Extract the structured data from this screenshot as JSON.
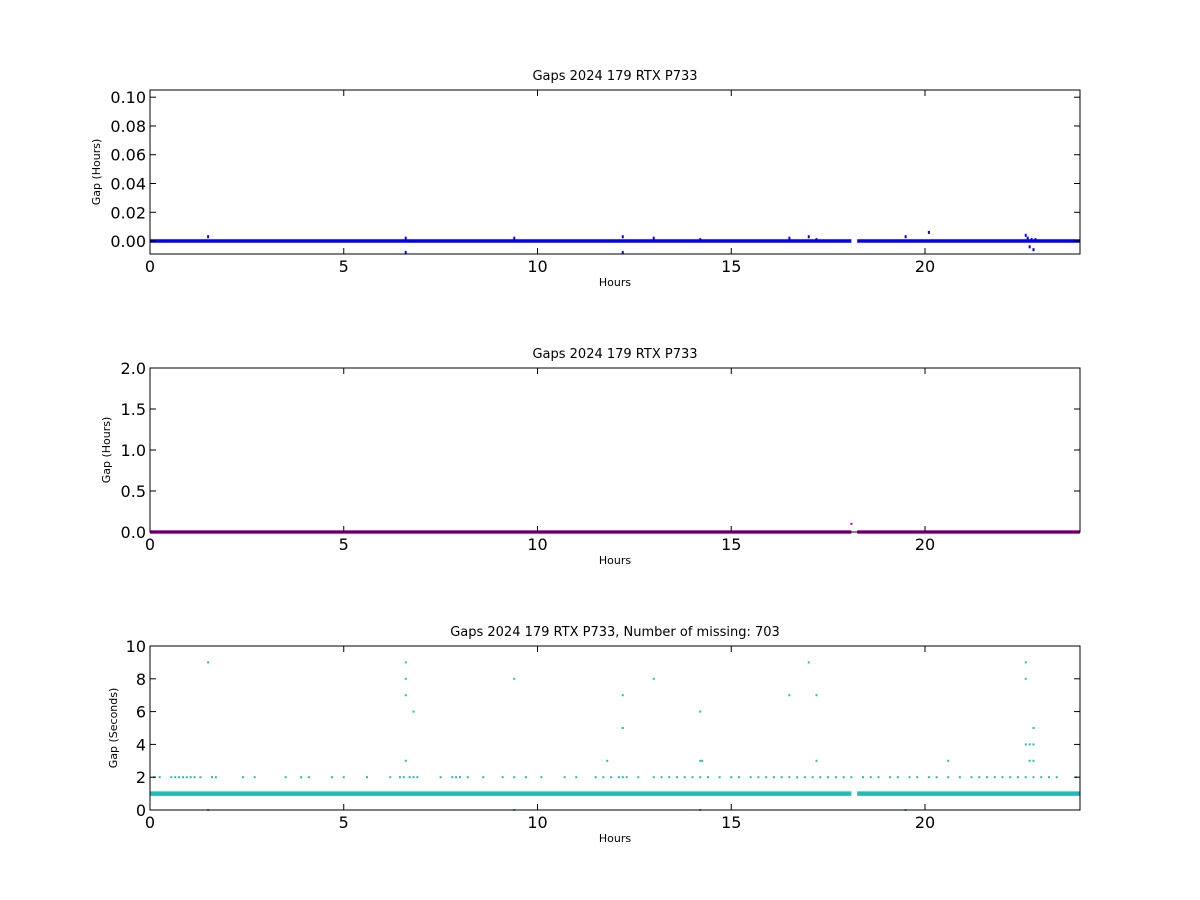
{
  "chart_data": [
    {
      "type": "scatter",
      "title": "Gaps 2024 179 RTX  P733",
      "xlabel": "Hours",
      "ylabel": "Gap (Hours)",
      "xlim": [
        0,
        24
      ],
      "ylim": [
        -0.009,
        0.105
      ],
      "xticks": [
        "0",
        "5",
        "10",
        "15",
        "20"
      ],
      "yticks": [
        "0.00",
        "0.02",
        "0.04",
        "0.06",
        "0.08",
        "0.10"
      ],
      "grid": false,
      "color": "#0000ee",
      "baseline": {
        "value": 0.0,
        "x_ranges": [
          [
            0,
            18.1
          ],
          [
            18.25,
            24
          ]
        ]
      },
      "points": [
        [
          1.5,
          0.003
        ],
        [
          6.6,
          0.002
        ],
        [
          6.6,
          -0.008
        ],
        [
          6.8,
          0.0
        ],
        [
          9.4,
          0.002
        ],
        [
          12.2,
          0.003
        ],
        [
          12.2,
          -0.008
        ],
        [
          13.0,
          0.002
        ],
        [
          14.2,
          0.001
        ],
        [
          16.5,
          0.002
        ],
        [
          17.0,
          0.003
        ],
        [
          17.2,
          0.001
        ],
        [
          19.5,
          0.003
        ],
        [
          20.1,
          0.006
        ],
        [
          22.6,
          0.004
        ],
        [
          22.65,
          0.002
        ],
        [
          22.7,
          -0.004
        ],
        [
          22.75,
          0.001
        ],
        [
          22.8,
          -0.006
        ],
        [
          22.85,
          0.001
        ]
      ]
    },
    {
      "type": "scatter",
      "title": "Gaps 2024 179 RTX  P733",
      "xlabel": "Hours",
      "ylabel": "Gap (Hours)",
      "xlim": [
        0,
        24
      ],
      "ylim": [
        0,
        2.0
      ],
      "xticks": [
        "0",
        "5",
        "10",
        "15",
        "20"
      ],
      "yticks": [
        "0.0",
        "0.5",
        "1.0",
        "1.5",
        "2.0"
      ],
      "grid": false,
      "color": "#aa00aa",
      "baseline": {
        "value": 0.0,
        "x_ranges": [
          [
            0,
            18.1
          ],
          [
            18.25,
            24
          ]
        ]
      },
      "points": [
        [
          18.1,
          0.1
        ]
      ]
    },
    {
      "type": "scatter",
      "title": "Gaps 2024 179 RTX  P733, Number of missing: 703",
      "xlabel": "Hours",
      "ylabel": "Gap (Seconds)",
      "xlim": [
        0,
        24
      ],
      "ylim": [
        0,
        10
      ],
      "xticks": [
        "0",
        "5",
        "10",
        "15",
        "20"
      ],
      "yticks": [
        "0",
        "2",
        "4",
        "6",
        "8",
        "10"
      ],
      "grid": false,
      "color": "#22bbbb",
      "baseline": {
        "value": 1.0,
        "x_ranges": [
          [
            0,
            18.1
          ],
          [
            18.25,
            24
          ]
        ]
      },
      "points": [
        [
          1.5,
          9
        ],
        [
          6.6,
          9
        ],
        [
          6.6,
          8
        ],
        [
          6.6,
          7
        ],
        [
          6.8,
          6
        ],
        [
          6.6,
          3
        ],
        [
          9.4,
          8
        ],
        [
          12.2,
          7
        ],
        [
          12.2,
          5
        ],
        [
          11.8,
          3
        ],
        [
          13.0,
          8
        ],
        [
          14.2,
          6
        ],
        [
          14.2,
          3
        ],
        [
          14.25,
          3
        ],
        [
          16.5,
          7
        ],
        [
          17.0,
          9
        ],
        [
          17.2,
          7
        ],
        [
          17.2,
          3
        ],
        [
          20.6,
          3
        ],
        [
          22.6,
          9
        ],
        [
          22.6,
          8
        ],
        [
          22.8,
          5
        ],
        [
          22.6,
          4
        ],
        [
          22.7,
          4
        ],
        [
          22.8,
          4
        ],
        [
          22.7,
          3
        ],
        [
          22.8,
          3
        ],
        [
          1.5,
          0
        ],
        [
          9.4,
          0
        ],
        [
          14.2,
          0
        ],
        [
          19.5,
          0
        ],
        [
          0.1,
          2
        ],
        [
          0.25,
          2
        ],
        [
          0.55,
          2
        ],
        [
          0.65,
          2
        ],
        [
          0.75,
          2
        ],
        [
          0.85,
          2
        ],
        [
          0.95,
          2
        ],
        [
          1.05,
          2
        ],
        [
          1.15,
          2
        ],
        [
          1.3,
          2
        ],
        [
          1.6,
          2
        ],
        [
          1.7,
          2
        ],
        [
          2.4,
          2
        ],
        [
          2.7,
          2
        ],
        [
          3.5,
          2
        ],
        [
          3.9,
          2
        ],
        [
          4.1,
          2
        ],
        [
          4.7,
          2
        ],
        [
          5.0,
          2
        ],
        [
          5.6,
          2
        ],
        [
          6.2,
          2
        ],
        [
          6.45,
          2
        ],
        [
          6.55,
          2
        ],
        [
          6.7,
          2
        ],
        [
          6.8,
          2
        ],
        [
          6.9,
          2
        ],
        [
          7.5,
          2
        ],
        [
          7.8,
          2
        ],
        [
          7.9,
          2
        ],
        [
          8.0,
          2
        ],
        [
          8.2,
          2
        ],
        [
          8.6,
          2
        ],
        [
          9.1,
          2
        ],
        [
          9.4,
          2
        ],
        [
          9.7,
          2
        ],
        [
          10.1,
          2
        ],
        [
          10.7,
          2
        ],
        [
          11.0,
          2
        ],
        [
          11.5,
          2
        ],
        [
          11.7,
          2
        ],
        [
          11.9,
          2
        ],
        [
          12.1,
          2
        ],
        [
          12.2,
          2
        ],
        [
          12.3,
          2
        ],
        [
          12.6,
          2
        ],
        [
          13.0,
          2
        ],
        [
          13.2,
          2
        ],
        [
          13.4,
          2
        ],
        [
          13.6,
          2
        ],
        [
          13.8,
          2
        ],
        [
          14.0,
          2
        ],
        [
          14.2,
          2
        ],
        [
          14.4,
          2
        ],
        [
          14.7,
          2
        ],
        [
          15.0,
          2
        ],
        [
          15.2,
          2
        ],
        [
          15.5,
          2
        ],
        [
          15.7,
          2
        ],
        [
          15.9,
          2
        ],
        [
          16.1,
          2
        ],
        [
          16.3,
          2
        ],
        [
          16.5,
          2
        ],
        [
          16.7,
          2
        ],
        [
          16.9,
          2
        ],
        [
          17.1,
          2
        ],
        [
          17.3,
          2
        ],
        [
          17.5,
          2
        ],
        [
          17.7,
          2
        ],
        [
          17.9,
          2
        ],
        [
          18.1,
          2
        ],
        [
          18.4,
          2
        ],
        [
          18.6,
          2
        ],
        [
          18.8,
          2
        ],
        [
          19.1,
          2
        ],
        [
          19.3,
          2
        ],
        [
          19.6,
          2
        ],
        [
          19.8,
          2
        ],
        [
          20.1,
          2
        ],
        [
          20.3,
          2
        ],
        [
          20.6,
          2
        ],
        [
          20.9,
          2
        ],
        [
          21.2,
          2
        ],
        [
          21.4,
          2
        ],
        [
          21.6,
          2
        ],
        [
          21.8,
          2
        ],
        [
          22.0,
          2
        ],
        [
          22.2,
          2
        ],
        [
          22.4,
          2
        ],
        [
          22.6,
          2
        ],
        [
          22.8,
          2
        ],
        [
          23.0,
          2
        ],
        [
          23.2,
          2
        ],
        [
          23.4,
          2
        ],
        [
          23.9,
          2
        ]
      ]
    }
  ]
}
